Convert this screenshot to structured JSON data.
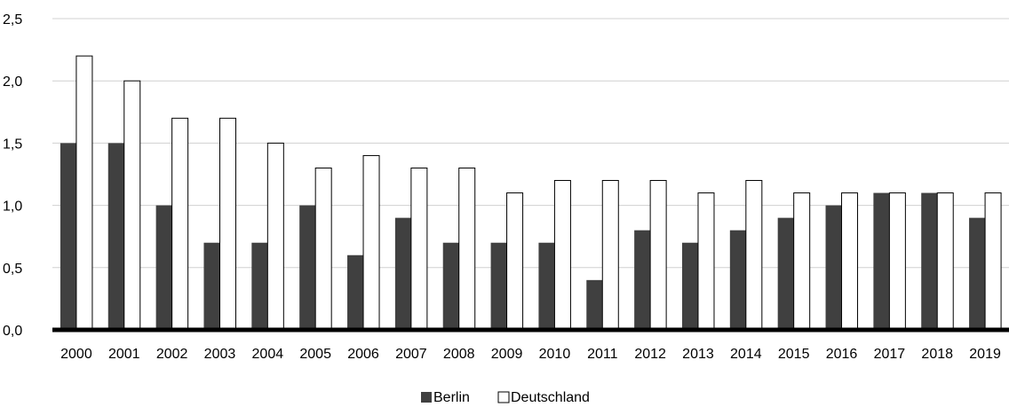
{
  "chart_data": {
    "type": "bar",
    "categories": [
      "2000",
      "2001",
      "2002",
      "2003",
      "2004",
      "2005",
      "2006",
      "2007",
      "2008",
      "2009",
      "2010",
      "2011",
      "2012",
      "2013",
      "2014",
      "2015",
      "2016",
      "2017",
      "2018",
      "2019"
    ],
    "series": [
      {
        "name": "Berlin",
        "color": "#404040",
        "values": [
          1.5,
          1.5,
          1.0,
          0.7,
          0.7,
          1.0,
          0.6,
          0.9,
          0.7,
          0.7,
          0.7,
          0.4,
          0.8,
          0.7,
          0.8,
          0.9,
          1.0,
          1.1,
          1.1,
          0.9
        ]
      },
      {
        "name": "Deutschland",
        "color": "#ffffff",
        "values": [
          2.2,
          2.0,
          1.7,
          1.7,
          1.5,
          1.3,
          1.4,
          1.3,
          1.3,
          1.1,
          1.2,
          1.2,
          1.2,
          1.1,
          1.2,
          1.1,
          1.1,
          1.1,
          1.1,
          1.1
        ]
      }
    ],
    "y_ticks": [
      "0,0",
      "0,5",
      "1,0",
      "1,5",
      "2,0",
      "2,5"
    ],
    "ylim": [
      0,
      2.5
    ],
    "grid": true,
    "legend_position": "bottom"
  }
}
